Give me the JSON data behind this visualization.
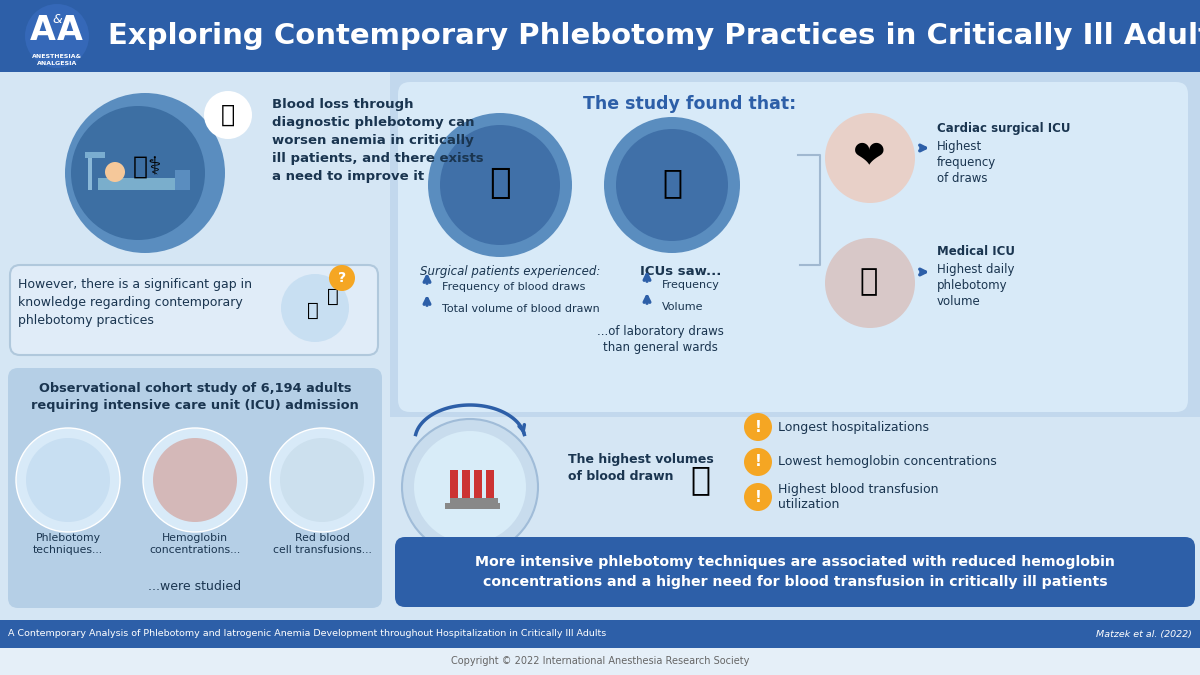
{
  "title": "Exploring Contemporary Phlebotomy Practices in Critically Ill Adults",
  "header_bg": "#2d5fa8",
  "body_bg": "#d5e6f4",
  "right_top_bg": "#c2d8ed",
  "right_bottom_bg": "#d5e6f4",
  "footer_bg": "#2d5fa8",
  "footer_text": "A Contemporary Analysis of Phlebotomy and Iatrogenic Anemia Development throughout Hospitalization in Critically Ill Adults",
  "footer_right": "Matzek et al. (2022)",
  "copyright": "Copyright © 2022 International Anesthesia Research Society",
  "orange": "#f5a623",
  "dark_blue": "#2d5fa8",
  "text_dark": "#1a3550",
  "light_box": "#dce8f5",
  "mid_box": "#b8d0e8",
  "white": "#ffffff",
  "circle_blue_outer": "#6495c8",
  "circle_blue_inner": "#4a7ab5",
  "gap_box_bg": "#e0ecf8",
  "gap_box_border": "#b0c8dc",
  "study_box_bg": "#b5cfe6",
  "study_circle_bg": "#d8eaf8",
  "right_sub_bg": "#d8eaf8",
  "icu_box_bg": "#d0e4f4",
  "cardiac_box_bg": "#d8eaf8",
  "conclusion_bg": "#2d5fa8",
  "findings_title": "The study found that:",
  "blood_loss_text": "Blood loss through\ndiagnostic phlebotomy can\nworsen anemia in critically\nill patients, and there exists\na need to improve it",
  "gap_text": "However, there is a significant gap in\nknowledge regarding contemporary\nphlebotomy practices",
  "study_title": "Observational cohort study of 6,194 adults\nrequiring intensive care unit (ICU) admission",
  "study_labels": [
    "Phlebotomy\ntechniques...",
    "Hemoglobin\nconcentrations...",
    "Red blood\ncell transfusions..."
  ],
  "study_footer": "...were studied",
  "surgical_label": "Surgical patients experienced:",
  "surgical_items": [
    "Frequency of blood draws",
    "Total volume of blood drawn"
  ],
  "icu_label": "ICUs saw...",
  "icu_items": [
    "Frequency",
    "Volume"
  ],
  "icu_footer": "...of laboratory draws\nthan general wards",
  "highest_label": "The highest volumes\nof blood drawn",
  "outcomes": [
    "Longest hospitalizations",
    "Lowest hemoglobin concentrations",
    "Highest blood transfusion\nutilization"
  ],
  "cardiac_line1": "Cardiac surgical ICU",
  "cardiac_line2": "Highest\nfrequency\nof draws",
  "medical_line1": "Medical ICU",
  "medical_line2": "Highest daily\nphlebotomy\nvolume",
  "conclusion": "More intensive phlebotomy techniques are associated with reduced hemoglobin\nconcentrations and a higher need for blood transfusion in critically ill patients"
}
